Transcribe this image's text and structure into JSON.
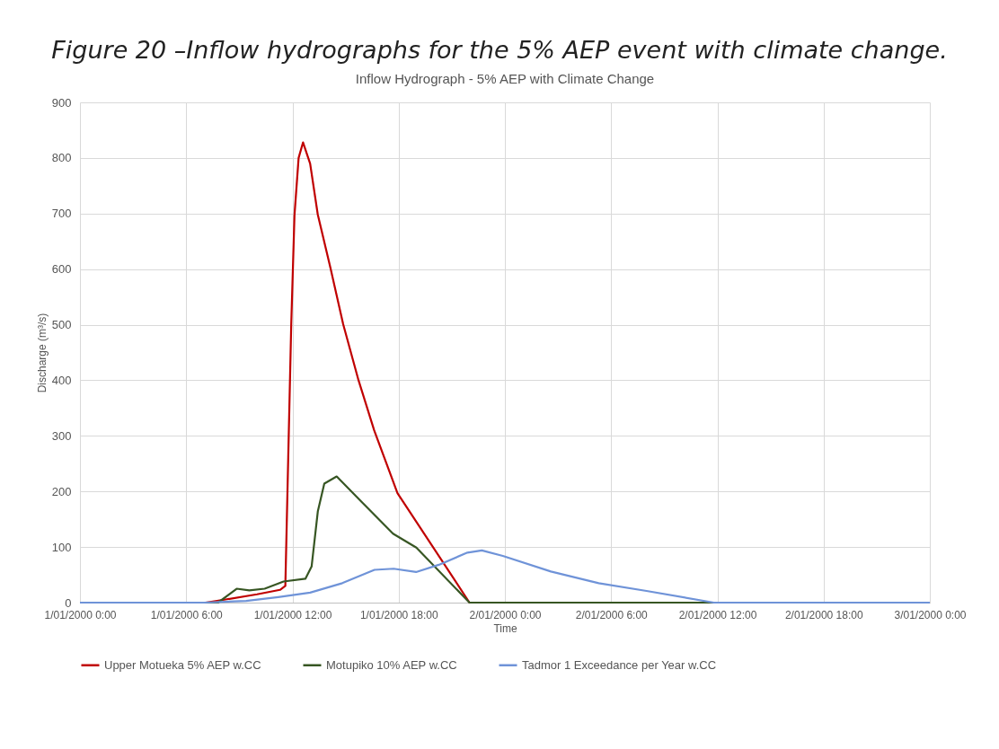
{
  "chart_data": {
    "type": "line",
    "title": "Inflow Hydrograph - 5% AEP with Climate Change",
    "annotations": [
      "Figure 20 –Inflow hydrographs for the 5% AEP event with climate change."
    ],
    "xlabel": "Time",
    "ylabel": "Discharge (m³/s)",
    "xlim": [
      "2000-01-01T00:00",
      "2000-01-03T00:00"
    ],
    "xticks": [
      {
        "value": "2000-01-01T00:00",
        "label": "1/01/2000 0:00"
      },
      {
        "value": "2000-01-01T06:00",
        "label": "1/01/2000 6:00"
      },
      {
        "value": "2000-01-01T12:00",
        "label": "1/01/2000 12:00"
      },
      {
        "value": "2000-01-01T18:00",
        "label": "1/01/2000 18:00"
      },
      {
        "value": "2000-01-02T00:00",
        "label": "2/01/2000 0:00"
      },
      {
        "value": "2000-01-02T06:00",
        "label": "2/01/2000 6:00"
      },
      {
        "value": "2000-01-02T12:00",
        "label": "2/01/2000 12:00"
      },
      {
        "value": "2000-01-02T18:00",
        "label": "2/01/2000 18:00"
      },
      {
        "value": "2000-01-03T00:00",
        "label": "3/01/2000 0:00"
      }
    ],
    "ylim": [
      0,
      900
    ],
    "yticks": [
      0,
      100,
      200,
      300,
      400,
      500,
      600,
      700,
      800,
      900
    ],
    "grid": true,
    "legend": "bottom",
    "marker": "none",
    "line_style": "solid",
    "series": [
      {
        "name": "Upper Motueka 5% AEP w.CC",
        "color": "#c00000",
        "x": [
          "2000-01-01T00:00",
          "2000-01-01T07:06",
          "2000-01-01T08:18",
          "2000-01-01T10:00",
          "2000-01-01T11:18",
          "2000-01-01T11:36",
          "2000-01-01T11:56",
          "2000-01-01T12:07",
          "2000-01-01T12:21",
          "2000-01-01T12:36",
          "2000-01-01T13:00",
          "2000-01-01T13:26",
          "2000-01-01T14:09",
          "2000-01-01T14:52",
          "2000-01-01T15:44",
          "2000-01-01T16:37",
          "2000-01-01T17:56",
          "2000-01-01T22:00",
          "2000-01-03T00:00"
        ],
        "values": [
          0,
          0,
          6,
          15,
          23,
          30,
          501,
          697,
          800,
          828,
          790,
          698,
          602,
          501,
          400,
          310,
          197,
          0,
          0
        ]
      },
      {
        "name": "Motupiko 10% AEP w.CC",
        "color": "#375623",
        "x": [
          "2000-01-01T00:00",
          "2000-01-01T07:48",
          "2000-01-01T08:51",
          "2000-01-01T09:34",
          "2000-01-01T10:26",
          "2000-01-01T11:30",
          "2000-01-01T12:44",
          "2000-01-01T13:05",
          "2000-01-01T13:26",
          "2000-01-01T13:48",
          "2000-01-01T14:30",
          "2000-01-01T15:55",
          "2000-01-01T17:41",
          "2000-01-01T19:00",
          "2000-01-01T22:00",
          "2000-01-03T00:00"
        ],
        "values": [
          0,
          0,
          25,
          22,
          25,
          38,
          43,
          65,
          164,
          214,
          227,
          181,
          124,
          99,
          0,
          0
        ]
      },
      {
        "name": "Tadmor 1 Exceedance per Year w.CC",
        "color": "#6f93d8",
        "x": [
          "2000-01-01T00:00",
          "2000-01-01T07:00",
          "2000-01-01T09:23",
          "2000-01-01T11:12",
          "2000-01-01T13:00",
          "2000-01-01T14:49",
          "2000-01-01T16:38",
          "2000-01-01T17:43",
          "2000-01-01T18:59",
          "2000-01-01T20:16",
          "2000-01-01T21:53",
          "2000-01-01T22:42",
          "2000-01-01T23:53",
          "2000-01-02T02:36",
          "2000-01-02T05:18",
          "2000-01-02T08:00",
          "2000-01-02T11:48",
          "2000-01-03T00:00"
        ],
        "values": [
          0,
          0,
          3,
          10,
          18,
          35,
          59,
          61,
          55,
          68,
          90,
          94,
          84,
          56,
          35,
          21,
          0,
          0
        ]
      }
    ]
  }
}
